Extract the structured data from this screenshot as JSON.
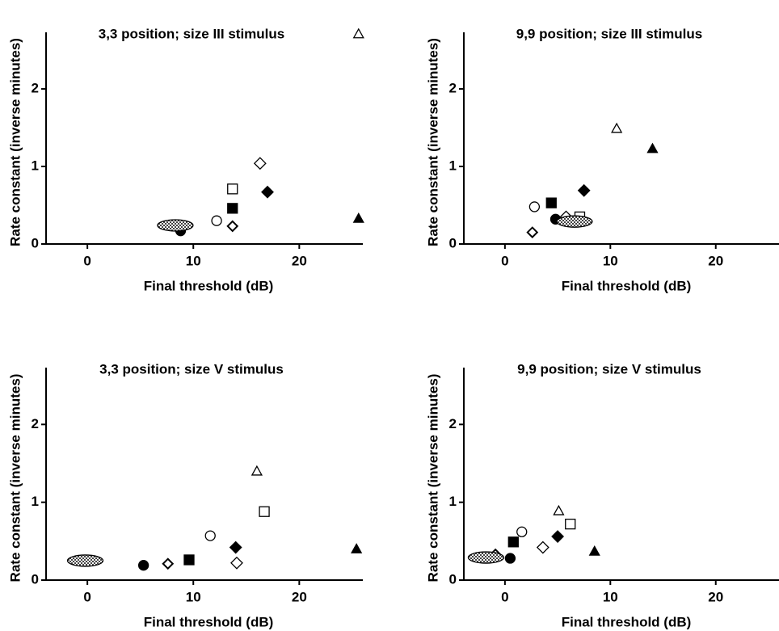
{
  "chart_data": [
    {
      "type": "scatter",
      "title": "3,3 position; size III stimulus",
      "xlabel": "Final threshold (dB)",
      "ylabel": "Rate constant (inverse minutes)",
      "xlim": [
        -3.9,
        26
      ],
      "ylim": [
        0,
        2.73
      ],
      "xticks": [
        0,
        10,
        20
      ],
      "yticks": [
        0,
        1,
        2
      ],
      "color": "#000000",
      "series": [
        {
          "marker": "triangle-open",
          "x": [
            25.6
          ],
          "values": [
            2.71
          ]
        },
        {
          "marker": "triangle-filled",
          "x": [
            25.6
          ],
          "values": [
            0.33
          ]
        },
        {
          "marker": "diamond-open",
          "x": [
            16.3
          ],
          "values": [
            1.04
          ]
        },
        {
          "marker": "diamond-filled",
          "x": [
            17.0
          ],
          "values": [
            0.67
          ]
        },
        {
          "marker": "square-open",
          "x": [
            13.7
          ],
          "values": [
            0.71
          ]
        },
        {
          "marker": "square-filled",
          "x": [
            13.7
          ],
          "values": [
            0.46
          ]
        },
        {
          "marker": "circle-open",
          "x": [
            12.2
          ],
          "values": [
            0.3
          ]
        },
        {
          "marker": "diamond-half",
          "x": [
            13.7
          ],
          "values": [
            0.23
          ]
        },
        {
          "marker": "circle-filled",
          "x": [
            8.8
          ],
          "values": [
            0.17
          ]
        },
        {
          "marker": "ellipse-hatched",
          "x": [
            8.3
          ],
          "values": [
            0.24
          ]
        }
      ]
    },
    {
      "type": "scatter",
      "title": "9,9 position; size III stimulus",
      "xlabel": "Final threshold (dB)",
      "ylabel": "Rate constant (inverse minutes)",
      "xlim": [
        -3.9,
        26
      ],
      "ylim": [
        0,
        2.73
      ],
      "xticks": [
        0,
        10,
        20
      ],
      "yticks": [
        0,
        1,
        2
      ],
      "color": "#000000",
      "series": [
        {
          "marker": "triangle-open",
          "x": [
            10.6
          ],
          "values": [
            1.49
          ]
        },
        {
          "marker": "triangle-filled",
          "x": [
            14.0
          ],
          "values": [
            1.23
          ]
        },
        {
          "marker": "diamond-open",
          "x": [
            5.8
          ],
          "values": [
            0.35
          ]
        },
        {
          "marker": "diamond-filled",
          "x": [
            7.5
          ],
          "values": [
            0.69
          ]
        },
        {
          "marker": "square-open",
          "x": [
            7.1
          ],
          "values": [
            0.35
          ]
        },
        {
          "marker": "square-filled",
          "x": [
            4.4
          ],
          "values": [
            0.53
          ]
        },
        {
          "marker": "circle-open",
          "x": [
            2.8
          ],
          "values": [
            0.48
          ]
        },
        {
          "marker": "diamond-half",
          "x": [
            2.6
          ],
          "values": [
            0.15
          ]
        },
        {
          "marker": "circle-filled",
          "x": [
            4.8
          ],
          "values": [
            0.32
          ]
        },
        {
          "marker": "ellipse-hatched",
          "x": [
            6.6
          ],
          "values": [
            0.29
          ]
        }
      ]
    },
    {
      "type": "scatter",
      "title": "3,3 position; size V stimulus",
      "xlabel": "Final threshold (dB)",
      "ylabel": "Rate constant (inverse minutes)",
      "xlim": [
        -3.9,
        26
      ],
      "ylim": [
        0,
        2.73
      ],
      "xticks": [
        0,
        10,
        20
      ],
      "yticks": [
        0,
        1,
        2
      ],
      "color": "#000000",
      "series": [
        {
          "marker": "triangle-open",
          "x": [
            16.0
          ],
          "values": [
            1.4
          ]
        },
        {
          "marker": "triangle-filled",
          "x": [
            25.4
          ],
          "values": [
            0.4
          ]
        },
        {
          "marker": "diamond-open",
          "x": [
            14.1
          ],
          "values": [
            0.22
          ]
        },
        {
          "marker": "diamond-filled",
          "x": [
            14.0
          ],
          "values": [
            0.42
          ]
        },
        {
          "marker": "square-open",
          "x": [
            16.7
          ],
          "values": [
            0.88
          ]
        },
        {
          "marker": "square-filled",
          "x": [
            9.6
          ],
          "values": [
            0.26
          ]
        },
        {
          "marker": "circle-open",
          "x": [
            11.6
          ],
          "values": [
            0.57
          ]
        },
        {
          "marker": "diamond-half",
          "x": [
            7.6
          ],
          "values": [
            0.21
          ]
        },
        {
          "marker": "circle-filled",
          "x": [
            5.3
          ],
          "values": [
            0.19
          ]
        },
        {
          "marker": "ellipse-hatched",
          "x": [
            -0.2
          ],
          "values": [
            0.25
          ]
        }
      ]
    },
    {
      "type": "scatter",
      "title": "9,9 position; size V stimulus",
      "xlabel": "Final threshold (dB)",
      "ylabel": "Rate constant (inverse minutes)",
      "xlim": [
        -3.9,
        26
      ],
      "ylim": [
        0,
        2.73
      ],
      "xticks": [
        0,
        10,
        20
      ],
      "yticks": [
        0,
        1,
        2
      ],
      "color": "#000000",
      "series": [
        {
          "marker": "triangle-open",
          "x": [
            5.1
          ],
          "values": [
            0.89
          ]
        },
        {
          "marker": "triangle-filled",
          "x": [
            8.5
          ],
          "values": [
            0.37
          ]
        },
        {
          "marker": "diamond-open",
          "x": [
            3.6
          ],
          "values": [
            0.42
          ]
        },
        {
          "marker": "diamond-filled",
          "x": [
            5.0
          ],
          "values": [
            0.56
          ]
        },
        {
          "marker": "square-open",
          "x": [
            6.2
          ],
          "values": [
            0.72
          ]
        },
        {
          "marker": "square-filled",
          "x": [
            0.8
          ],
          "values": [
            0.49
          ]
        },
        {
          "marker": "circle-open",
          "x": [
            1.6
          ],
          "values": [
            0.62
          ]
        },
        {
          "marker": "diamond-half",
          "x": [
            -0.9
          ],
          "values": [
            0.33
          ]
        },
        {
          "marker": "circle-filled",
          "x": [
            0.5
          ],
          "values": [
            0.28
          ]
        },
        {
          "marker": "ellipse-hatched",
          "x": [
            -1.8
          ],
          "values": [
            0.29
          ]
        }
      ]
    }
  ]
}
